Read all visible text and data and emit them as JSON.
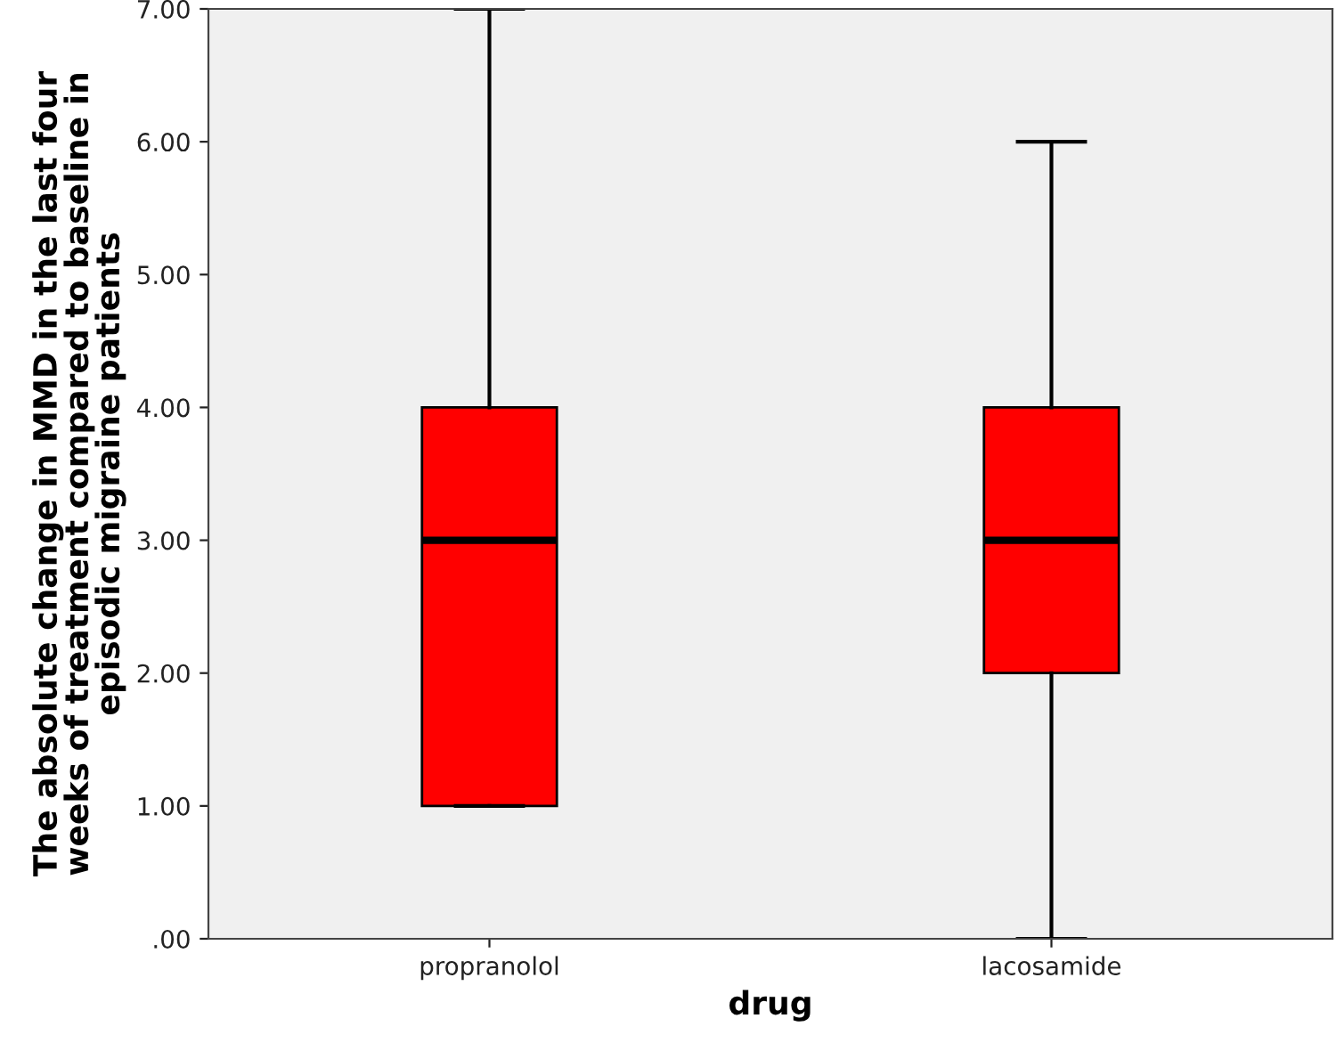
{
  "chart_data": {
    "type": "box",
    "xlabel": "drug",
    "ylabel": "The absolute change in MMD in the last four\nweeks of treatment compared to baseline in\nepisodic migraine patients",
    "categories": [
      "propranolol",
      "lacosamide"
    ],
    "boxes": [
      {
        "low": 1,
        "q1": 1,
        "median": 3,
        "q3": 4,
        "high": 7
      },
      {
        "low": 0,
        "q1": 2,
        "median": 3,
        "q3": 4,
        "high": 6
      }
    ],
    "color": "#ff0000",
    "ylim": [
      0,
      7
    ],
    "yticks": [
      {
        "value": 0,
        "label": ".00"
      },
      {
        "value": 1,
        "label": "1.00"
      },
      {
        "value": 2,
        "label": "2.00"
      },
      {
        "value": 3,
        "label": "3.00"
      },
      {
        "value": 4,
        "label": "4.00"
      },
      {
        "value": 5,
        "label": "5.00"
      },
      {
        "value": 6,
        "label": "6.00"
      },
      {
        "value": 7,
        "label": "7.00"
      }
    ],
    "grid": false
  }
}
